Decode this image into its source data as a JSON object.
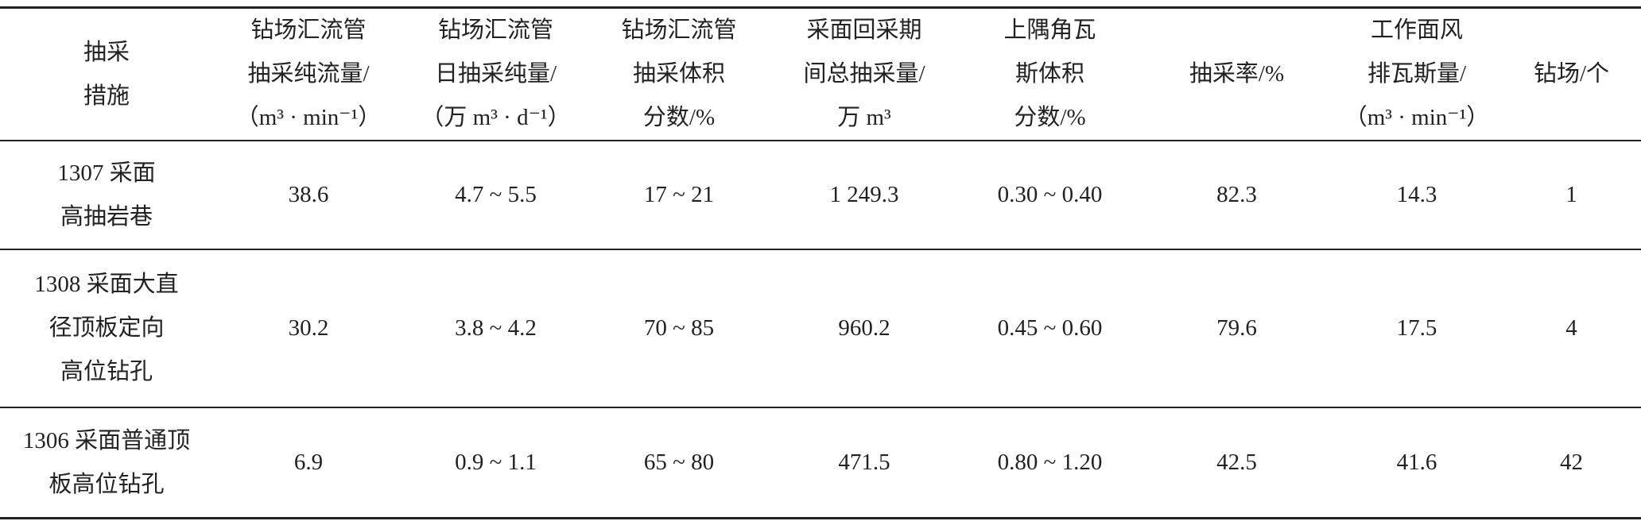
{
  "table": {
    "header": [
      [
        "抽采",
        "措施"
      ],
      [
        "钻场汇流管",
        "抽采纯流量/",
        "（m³ · min⁻¹）"
      ],
      [
        "钻场汇流管",
        "日抽采纯量/",
        "（万 m³ · d⁻¹）"
      ],
      [
        "钻场汇流管",
        "抽采体积",
        "分数/%"
      ],
      [
        "采面回采期",
        "间总抽采量/",
        "万 m³"
      ],
      [
        "上隅角瓦",
        "斯体积",
        "分数/%"
      ],
      [
        "抽采率/%"
      ],
      [
        "工作面风",
        "排瓦斯量/",
        "（m³ · min⁻¹）"
      ],
      [
        "钻场/个"
      ]
    ],
    "rows": [
      [
        [
          "1307 采面",
          "高抽岩巷"
        ],
        [
          "38.6"
        ],
        [
          "4.7 ~ 5.5"
        ],
        [
          "17 ~ 21"
        ],
        [
          "1 249.3"
        ],
        [
          "0.30 ~ 0.40"
        ],
        [
          "82.3"
        ],
        [
          "14.3"
        ],
        [
          "1"
        ]
      ],
      [
        [
          "1308 采面大直",
          "径顶板定向",
          "高位钻孔"
        ],
        [
          "30.2"
        ],
        [
          "3.8 ~ 4.2"
        ],
        [
          "70 ~ 85"
        ],
        [
          "960.2"
        ],
        [
          "0.45 ~ 0.60"
        ],
        [
          "79.6"
        ],
        [
          "17.5"
        ],
        [
          "4"
        ]
      ],
      [
        [
          "1306 采面普通顶",
          "板高位钻孔"
        ],
        [
          "6.9"
        ],
        [
          "0.9 ~ 1.1"
        ],
        [
          "65 ~ 80"
        ],
        [
          "471.5"
        ],
        [
          "0.80 ~ 1.20"
        ],
        [
          "42.5"
        ],
        [
          "41.6"
        ],
        [
          "42"
        ]
      ]
    ]
  }
}
